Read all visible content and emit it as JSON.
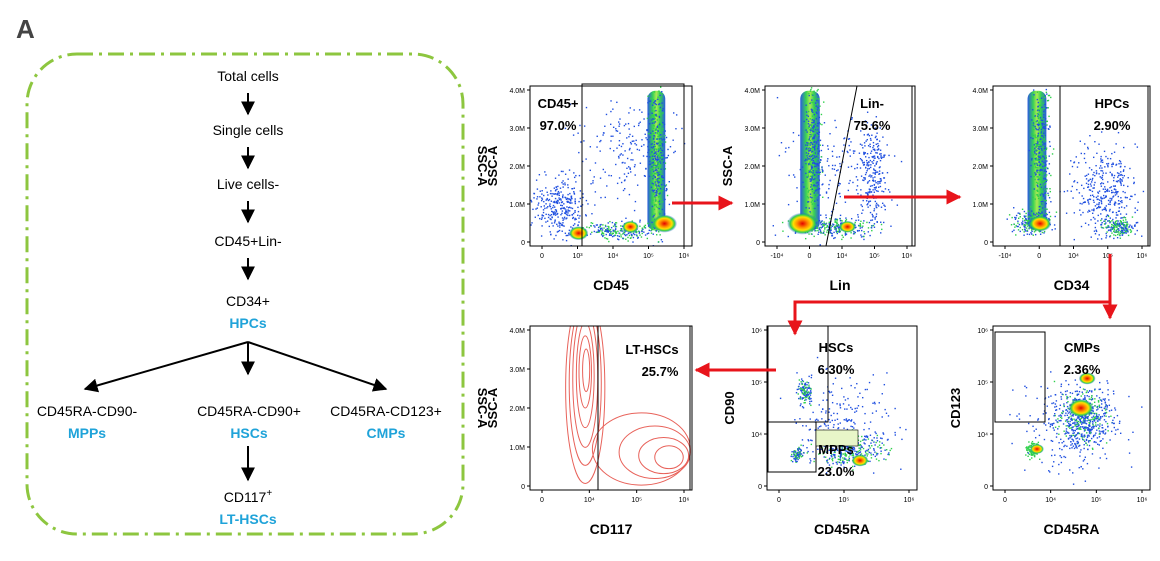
{
  "panel_label": "A",
  "colors": {
    "frame": "#8dc63f",
    "accent_text": "#1fa3d9",
    "gate_arrow": "#e8141b",
    "flow_arrow": "#000000",
    "contour": "#e8625a"
  },
  "gating_tree": {
    "steps": [
      "Total cells",
      "Single cells",
      "Live cells-",
      "CD45+Lin-"
    ],
    "cd34": {
      "label": "CD34+",
      "sub": "HPCs"
    },
    "branches": [
      {
        "label": "CD45RA-CD90-",
        "sub": "MPPs"
      },
      {
        "label": "CD45RA-CD90+",
        "sub": "HSCs"
      },
      {
        "label": "CD45RA-CD123+",
        "sub": "CMPs"
      }
    ],
    "final": {
      "label": "CD117",
      "sup": "+",
      "sub": "LT-HSCs"
    }
  },
  "plots": [
    {
      "id": "cd45",
      "xlabel": "CD45",
      "ylabel": "SSC-A",
      "y_ticks": [
        "4.0M",
        "3.0M",
        "2.0M",
        "1.0M",
        "0"
      ],
      "x_ticks": [
        "0",
        "10³",
        "10⁴",
        "10⁵",
        "10⁶"
      ],
      "gate_name": "CD45+",
      "gate_pct": "97.0%"
    },
    {
      "id": "lin",
      "xlabel": "Lin",
      "ylabel": "SSC-A",
      "y_ticks": [
        "4.0M",
        "3.0M",
        "2.0M",
        "1.0M",
        "0"
      ],
      "x_ticks": [
        "-10⁴",
        "0",
        "10⁴",
        "10⁵",
        "10⁶"
      ],
      "gate_name": "Lin-",
      "gate_pct": "75.6%"
    },
    {
      "id": "cd34",
      "xlabel": "CD34",
      "ylabel": "",
      "y_ticks": [
        "4.0M",
        "3.0M",
        "2.0M",
        "1.0M",
        "0"
      ],
      "x_ticks": [
        "-10⁴",
        "0",
        "10⁴",
        "10⁵",
        "10⁶"
      ],
      "gate_name": "HPCs",
      "gate_pct": "2.90%"
    },
    {
      "id": "cd117",
      "xlabel": "CD117",
      "ylabel": "SSC-A",
      "y_ticks": [
        "4.0M",
        "3.0M",
        "2.0M",
        "1.0M",
        "0"
      ],
      "x_ticks": [
        "0",
        "10⁴",
        "10⁵",
        "10⁶"
      ],
      "gate_name": "LT-HSCs",
      "gate_pct": "25.7%"
    },
    {
      "id": "cd90",
      "xlabel": "CD45RA",
      "ylabel": "CD90",
      "y_ticks": [
        "10⁶",
        "10⁵",
        "10⁴",
        "0"
      ],
      "x_ticks": [
        "0",
        "10⁵",
        "10⁶"
      ],
      "gate_name": "HSCs",
      "gate_pct": "6.30%",
      "gate2_name": "MPPs",
      "gate2_pct": "23.0%"
    },
    {
      "id": "cd123",
      "xlabel": "CD45RA",
      "ylabel": "CD123",
      "y_ticks": [
        "10⁶",
        "10⁵",
        "10⁴",
        "0"
      ],
      "x_ticks": [
        "0",
        "10⁴",
        "10⁵",
        "10⁶"
      ],
      "gate_name": "CMPs",
      "gate_pct": "2.36%"
    }
  ]
}
